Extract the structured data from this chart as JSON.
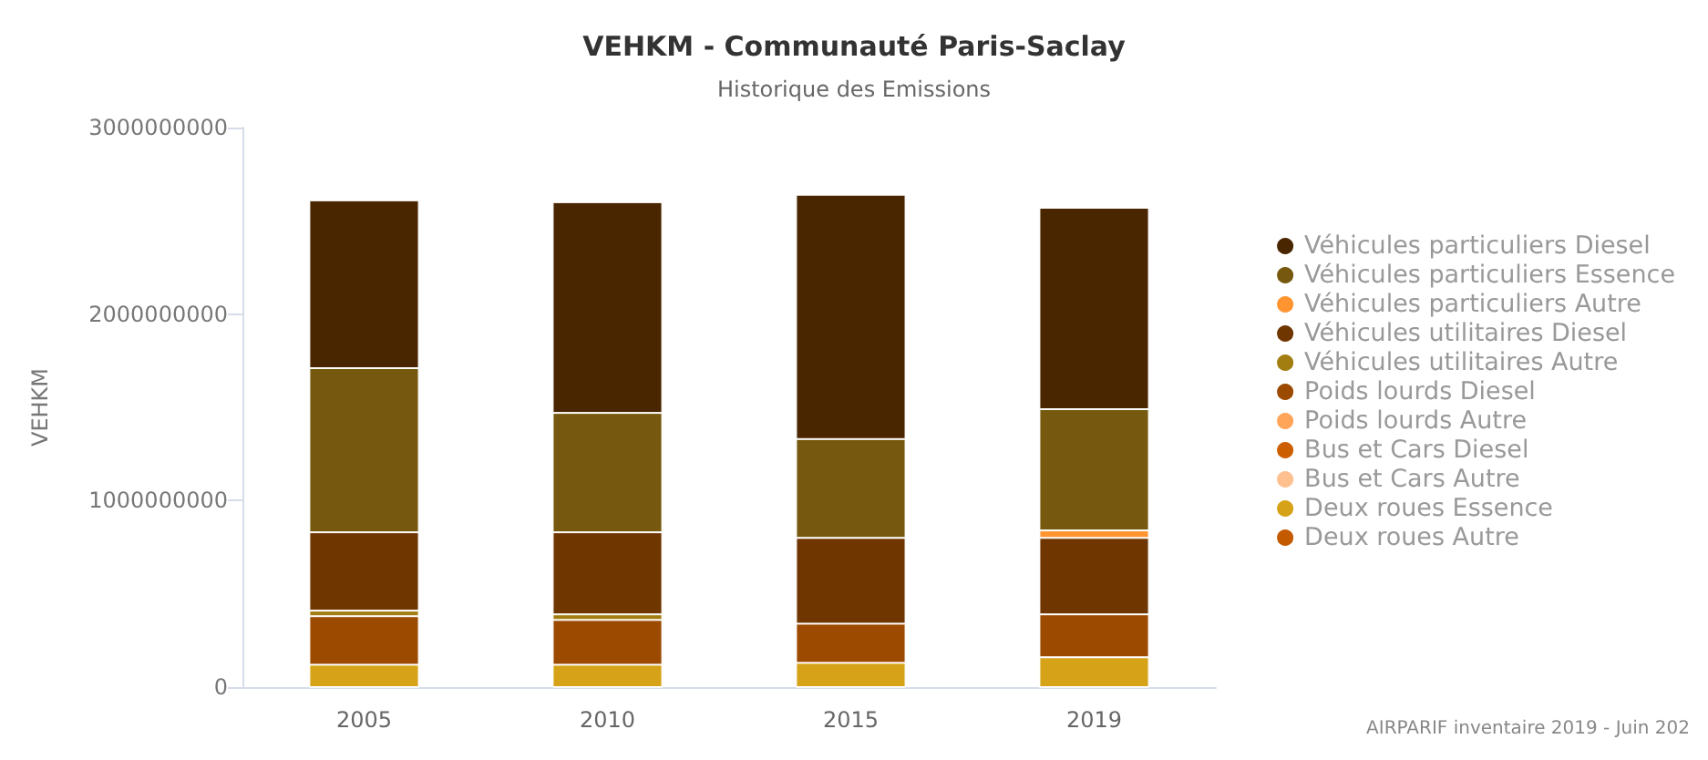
{
  "chart_data": {
    "type": "bar",
    "title": "VEHKM - Communauté Paris-Saclay",
    "subtitle": "Historique des Emissions",
    "ylabel": "VEHKM",
    "stacked": true,
    "categories": [
      "2005",
      "2010",
      "2015",
      "2019"
    ],
    "series": [
      {
        "name": "Deux roues Autre",
        "color": "#c45a00",
        "values": [
          0,
          0,
          0,
          0
        ]
      },
      {
        "name": "Deux roues Essence",
        "color": "#d6a318",
        "values": [
          120000000,
          120000000,
          130000000,
          160000000
        ]
      },
      {
        "name": "Bus et Cars Autre",
        "color": "#ffc090",
        "values": [
          0,
          0,
          0,
          0
        ]
      },
      {
        "name": "Bus et Cars Diesel",
        "color": "#cc6000",
        "values": [
          0,
          0,
          0,
          0
        ]
      },
      {
        "name": "Poids lourds Autre",
        "color": "#ffa55a",
        "values": [
          0,
          0,
          0,
          0
        ]
      },
      {
        "name": "Poids lourds Diesel",
        "color": "#9c4a00",
        "values": [
          260000000,
          240000000,
          210000000,
          230000000
        ]
      },
      {
        "name": "Véhicules utilitaires Autre",
        "color": "#a27d10",
        "values": [
          30000000,
          30000000,
          0,
          0
        ]
      },
      {
        "name": "Véhicules utilitaires Diesel",
        "color": "#6f3600",
        "values": [
          420000000,
          440000000,
          460000000,
          410000000
        ]
      },
      {
        "name": "Véhicules particuliers Autre",
        "color": "#ff9430",
        "values": [
          0,
          0,
          0,
          40000000
        ]
      },
      {
        "name": "Véhicules particuliers Essence",
        "color": "#76590e",
        "values": [
          880000000,
          640000000,
          530000000,
          650000000
        ]
      },
      {
        "name": "Véhicules particuliers Diesel",
        "color": "#4a2600",
        "values": [
          900000000,
          1130000000,
          1310000000,
          1080000000
        ]
      }
    ],
    "ylim": [
      0,
      3000000000
    ],
    "yticks": [
      0,
      1000000000,
      2000000000,
      3000000000
    ],
    "grid": false,
    "legend": "right",
    "annotations": [
      "AIRPARIF inventaire 2019 - Juin 202"
    ]
  }
}
